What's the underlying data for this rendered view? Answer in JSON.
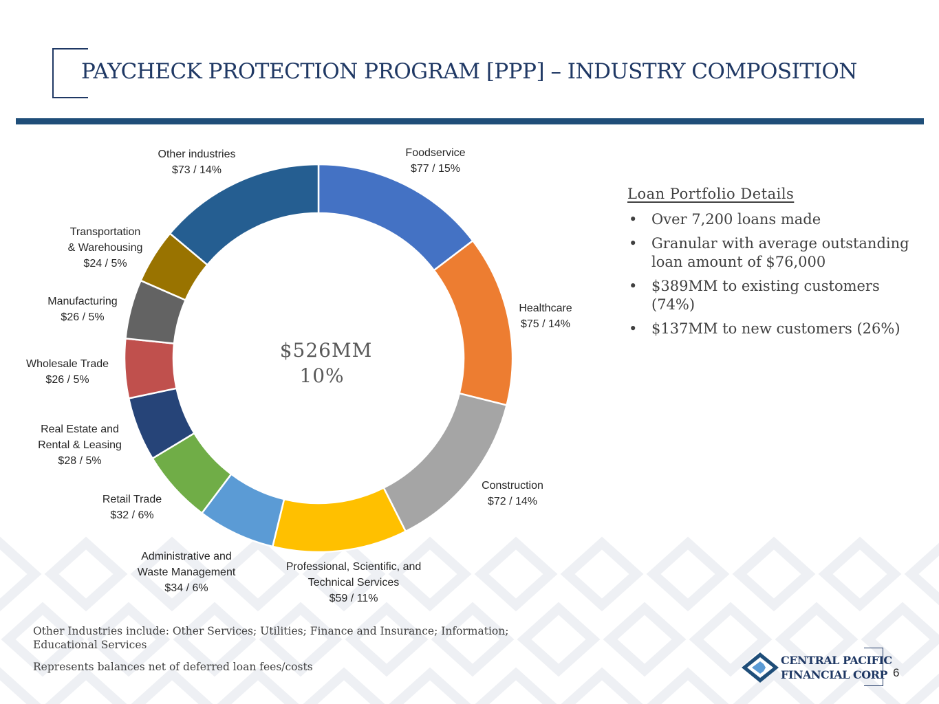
{
  "header": {
    "title": "PAYCHECK PROTECTION PROGRAM [PPP] – INDUSTRY COMPOSITION"
  },
  "chart_data": {
    "type": "pie",
    "donut": true,
    "center_text": [
      "$526MM",
      "10%"
    ],
    "units": "$MM",
    "slices": [
      {
        "name": "Foodservice",
        "value": 77,
        "pct": 15,
        "label": [
          "Foodservice",
          "$77 / 15%"
        ],
        "color": "#4472c4"
      },
      {
        "name": "Healthcare",
        "value": 75,
        "pct": 14,
        "label": [
          "Healthcare",
          "$75 / 14%"
        ],
        "color": "#ed7d31"
      },
      {
        "name": "Construction",
        "value": 72,
        "pct": 14,
        "label": [
          "Construction",
          "$72 / 14%"
        ],
        "color": "#a5a5a5"
      },
      {
        "name": "Professional, Scientific, and Technical Services",
        "value": 59,
        "pct": 11,
        "label": [
          "Professional, Scientific, and",
          "Technical Services",
          "$59 / 11%"
        ],
        "color": "#ffc000"
      },
      {
        "name": "Administrative and Waste Management",
        "value": 34,
        "pct": 6,
        "label": [
          "Administrative and",
          "Waste Management",
          "$34 / 6%"
        ],
        "color": "#5b9bd5"
      },
      {
        "name": "Retail Trade",
        "value": 32,
        "pct": 6,
        "label": [
          "Retail Trade",
          "$32 / 6%"
        ],
        "color": "#70ad47"
      },
      {
        "name": "Real Estate and Rental & Leasing",
        "value": 28,
        "pct": 5,
        "label": [
          "Real Estate and",
          "Rental & Leasing",
          "$28 / 5%"
        ],
        "color": "#264478"
      },
      {
        "name": "Wholesale Trade",
        "value": 26,
        "pct": 5,
        "label": [
          "Wholesale Trade",
          "$26 / 5%"
        ],
        "color": "#c0504d"
      },
      {
        "name": "Manufacturing",
        "value": 26,
        "pct": 5,
        "label": [
          "Manufacturing",
          "$26 / 5%"
        ],
        "color": "#636363"
      },
      {
        "name": "Transportation & Warehousing",
        "value": 24,
        "pct": 5,
        "label": [
          "Transportation",
          "& Warehousing",
          "$24 / 5%"
        ],
        "color": "#997300"
      },
      {
        "name": "Other industries",
        "value": 73,
        "pct": 14,
        "label": [
          "Other industries",
          "$73 / 14%"
        ],
        "color": "#255e91"
      }
    ]
  },
  "details": {
    "heading": "Loan Portfolio Details",
    "bullet_symbol": "•",
    "items": [
      "Over 7,200 loans made",
      "Granular with average outstanding loan amount of $76,000",
      "$389MM to existing customers (74%)",
      "$137MM to new customers (26%)"
    ]
  },
  "footer": {
    "note1": "Other Industries include: Other Services; Utilities; Finance and Insurance; Information; Educational Services",
    "note2": "Represents balances net of deferred loan fees/costs",
    "logo_line1": "CENTRAL PACIFIC",
    "logo_line2": "FINANCIAL CORP",
    "logo_icon": "cpf-diamond-logo-icon",
    "page_number": "6"
  }
}
